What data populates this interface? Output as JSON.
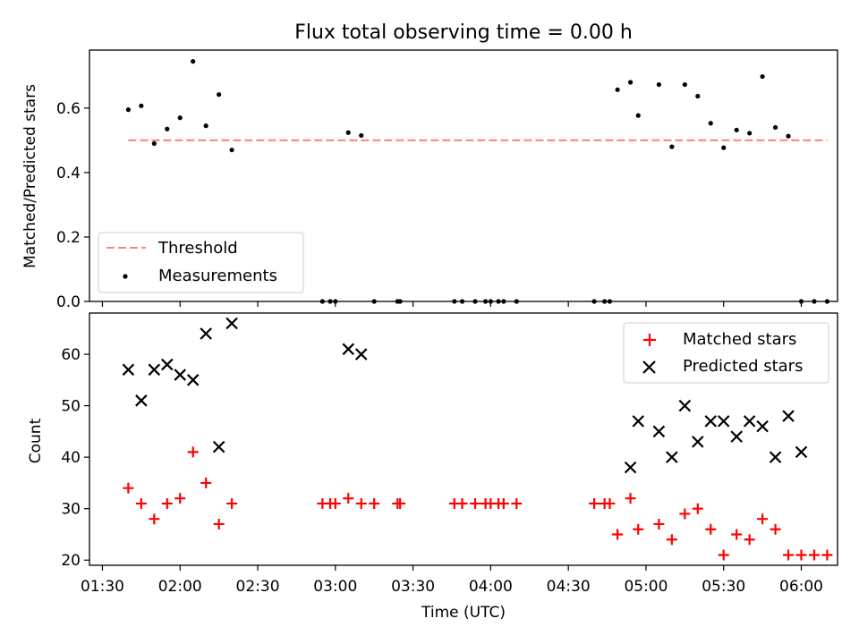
{
  "chart_data": {
    "title": "Flux total observing time = 0.00 h",
    "xlabel": "Time (UTC)",
    "x_tick_labels": [
      "01:30",
      "02:00",
      "02:30",
      "03:00",
      "03:30",
      "04:00",
      "04:30",
      "05:00",
      "05:30",
      "06:00"
    ],
    "panels": [
      {
        "type": "scatter",
        "ylabel": "Matched/Predicted stars",
        "ylim": [
          0,
          0.78
        ],
        "yticks": [
          0.0,
          0.2,
          0.4,
          0.6
        ],
        "ytick_labels": [
          "0.0",
          "0.2",
          "0.4",
          "0.6"
        ],
        "legend_location": "lower-left",
        "series": [
          {
            "name": "Threshold",
            "kind": "dashed-line",
            "color": "#ff7f7f",
            "x": [
              "01:40",
              "06:10"
            ],
            "y": [
              0.5,
              0.5
            ]
          },
          {
            "name": "Measurements",
            "kind": "dots",
            "color": "#000000",
            "x": [
              "01:40",
              "01:45",
              "01:50",
              "01:55",
              "02:00",
              "02:05",
              "02:10",
              "02:15",
              "02:20",
              "02:55",
              "02:58",
              "03:00",
              "03:05",
              "03:10",
              "03:15",
              "03:24",
              "03:25",
              "03:46",
              "03:49",
              "03:54",
              "03:58",
              "04:00",
              "04:03",
              "04:05",
              "04:10",
              "04:40",
              "04:44",
              "04:46",
              "04:49",
              "04:54",
              "04:57",
              "05:05",
              "05:10",
              "05:15",
              "05:20",
              "05:25",
              "05:30",
              "05:35",
              "05:40",
              "05:45",
              "05:50",
              "05:55",
              "06:00",
              "06:05",
              "06:10"
            ],
            "y": [
              0.595,
              0.607,
              0.49,
              0.535,
              0.57,
              0.745,
              0.545,
              0.642,
              0.47,
              0.0,
              0.0,
              0.0,
              0.524,
              0.515,
              0.0,
              0.0,
              0.0,
              0.0,
              0.0,
              0.0,
              0.0,
              0.0,
              0.0,
              0.0,
              0.0,
              0.0,
              0.0,
              0.0,
              0.657,
              0.68,
              0.577,
              0.673,
              0.48,
              0.673,
              0.637,
              0.553,
              0.477,
              0.532,
              0.522,
              0.698,
              0.54,
              0.513,
              0.0,
              0.0,
              0.0
            ]
          }
        ]
      },
      {
        "type": "scatter",
        "ylabel": "Count",
        "ylim": [
          19,
          68
        ],
        "yticks": [
          20,
          30,
          40,
          50,
          60
        ],
        "ytick_labels": [
          "20",
          "30",
          "40",
          "50",
          "60"
        ],
        "legend_location": "upper-right",
        "series": [
          {
            "name": "Matched stars",
            "kind": "plus",
            "color": "#ff0000",
            "x": [
              "01:40",
              "01:45",
              "01:50",
              "01:55",
              "02:00",
              "02:05",
              "02:10",
              "02:15",
              "02:20",
              "02:55",
              "02:58",
              "03:00",
              "03:05",
              "03:10",
              "03:15",
              "03:24",
              "03:25",
              "03:46",
              "03:49",
              "03:54",
              "03:58",
              "04:00",
              "04:03",
              "04:05",
              "04:10",
              "04:40",
              "04:44",
              "04:46",
              "04:49",
              "04:54",
              "04:57",
              "05:05",
              "05:10",
              "05:15",
              "05:20",
              "05:25",
              "05:30",
              "05:35",
              "05:40",
              "05:45",
              "05:50",
              "05:55",
              "06:00",
              "06:05",
              "06:10"
            ],
            "y": [
              34,
              31,
              28,
              31,
              32,
              41,
              35,
              27,
              31,
              31,
              31,
              31,
              32,
              31,
              31,
              31,
              31,
              31,
              31,
              31,
              31,
              31,
              31,
              31,
              31,
              31,
              31,
              31,
              25,
              32,
              26,
              27,
              24,
              29,
              30,
              26,
              21,
              25,
              24,
              28,
              26,
              21,
              21,
              21,
              21
            ]
          },
          {
            "name": "Predicted stars",
            "kind": "x",
            "color": "#000000",
            "x": [
              "01:40",
              "01:45",
              "01:50",
              "01:55",
              "02:00",
              "02:05",
              "02:10",
              "02:15",
              "02:20",
              "03:05",
              "03:10",
              "04:54",
              "04:57",
              "05:05",
              "05:10",
              "05:15",
              "05:20",
              "05:25",
              "05:30",
              "05:35",
              "05:40",
              "05:45",
              "05:50",
              "05:55",
              "06:00"
            ],
            "y": [
              57,
              51,
              57,
              58,
              56,
              55,
              64,
              42,
              66,
              61,
              60,
              38,
              47,
              45,
              40,
              50,
              43,
              47,
              47,
              44,
              47,
              46,
              40,
              48,
              41
            ]
          }
        ]
      }
    ]
  }
}
